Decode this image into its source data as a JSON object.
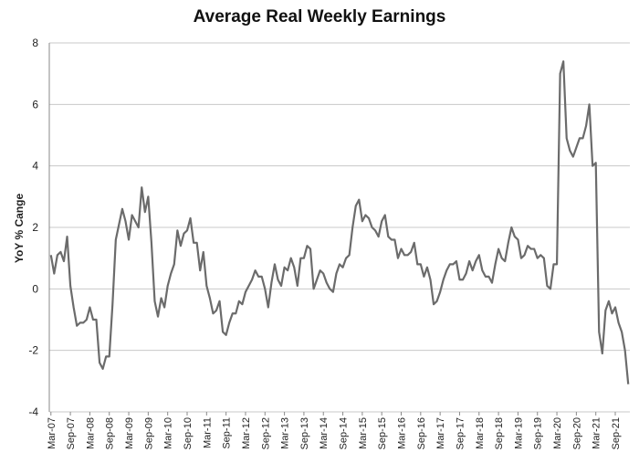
{
  "chart_data": {
    "type": "line",
    "title": "Average Real Weekly Earnings",
    "xlabel": "",
    "ylabel": "YoY % Cange",
    "ylim": [
      -4,
      8
    ],
    "yticks": [
      -4,
      -2,
      0,
      2,
      4,
      6,
      8
    ],
    "grid": "horizontal",
    "legend": "none",
    "colors": {
      "line": "#6b6b6b",
      "grid": "#c8c8c8",
      "axis": "#8a8a8a"
    },
    "x_tick_labels": [
      "Mar-07",
      "Sep-07",
      "Mar-08",
      "Sep-08",
      "Mar-09",
      "Sep-09",
      "Mar-10",
      "Sep-10",
      "Mar-11",
      "Sep-11",
      "Mar-12",
      "Sep-12",
      "Mar-13",
      "Sep-13",
      "Mar-14",
      "Sep-14",
      "Mar-15",
      "Sep-15",
      "Mar-16",
      "Sep-16",
      "Mar-17",
      "Sep-17",
      "Mar-18",
      "Sep-18",
      "Mar-19",
      "Sep-19",
      "Mar-20",
      "Sep-20",
      "Mar-21",
      "Sep-21"
    ],
    "start_month": "Mar-07",
    "series": [
      {
        "values": [
          1.1,
          0.5,
          1.1,
          1.2,
          0.9,
          1.7,
          0.1,
          -0.6,
          -1.2,
          -1.1,
          -1.1,
          -1.0,
          -0.6,
          -1.0,
          -1.0,
          -2.4,
          -2.6,
          -2.2,
          -2.2,
          -0.5,
          1.6,
          2.1,
          2.6,
          2.2,
          1.6,
          2.4,
          2.2,
          2.0,
          3.3,
          2.5,
          3.0,
          1.5,
          -0.4,
          -0.9,
          -0.3,
          -0.6,
          0.1,
          0.5,
          0.8,
          1.9,
          1.4,
          1.8,
          1.9,
          2.3,
          1.5,
          1.5,
          0.6,
          1.2,
          0.1,
          -0.3,
          -0.8,
          -0.7,
          -0.4,
          -1.4,
          -1.5,
          -1.1,
          -0.8,
          -0.8,
          -0.4,
          -0.5,
          -0.1,
          0.1,
          0.3,
          0.6,
          0.4,
          0.4,
          0.0,
          -0.6,
          0.2,
          0.8,
          0.3,
          0.1,
          0.7,
          0.6,
          1.0,
          0.7,
          0.1,
          1.0,
          1.0,
          1.4,
          1.3,
          0.0,
          0.3,
          0.6,
          0.5,
          0.2,
          0.0,
          -0.1,
          0.5,
          0.8,
          0.7,
          1.0,
          1.1,
          2.0,
          2.7,
          2.9,
          2.2,
          2.4,
          2.3,
          2.0,
          1.9,
          1.7,
          2.2,
          2.4,
          1.7,
          1.6,
          1.6,
          1.0,
          1.3,
          1.1,
          1.1,
          1.2,
          1.5,
          0.8,
          0.8,
          0.4,
          0.7,
          0.3,
          -0.5,
          -0.4,
          -0.1,
          0.3,
          0.6,
          0.8,
          0.8,
          0.9,
          0.3,
          0.3,
          0.5,
          0.9,
          0.6,
          0.9,
          1.1,
          0.6,
          0.4,
          0.4,
          0.2,
          0.8,
          1.3,
          1.0,
          0.9,
          1.5,
          2.0,
          1.7,
          1.6,
          1.0,
          1.1,
          1.4,
          1.3,
          1.3,
          1.0,
          1.1,
          1.0,
          0.1,
          0.0,
          0.8,
          0.8,
          7.0,
          7.4,
          4.9,
          4.5,
          4.3,
          4.6,
          4.9,
          4.9,
          5.3,
          6.0,
          4.0,
          4.1,
          -1.4,
          -2.1,
          -0.7,
          -0.4,
          -0.8,
          -0.6,
          -1.1,
          -1.4,
          -2.0,
          -3.1
        ]
      }
    ]
  }
}
